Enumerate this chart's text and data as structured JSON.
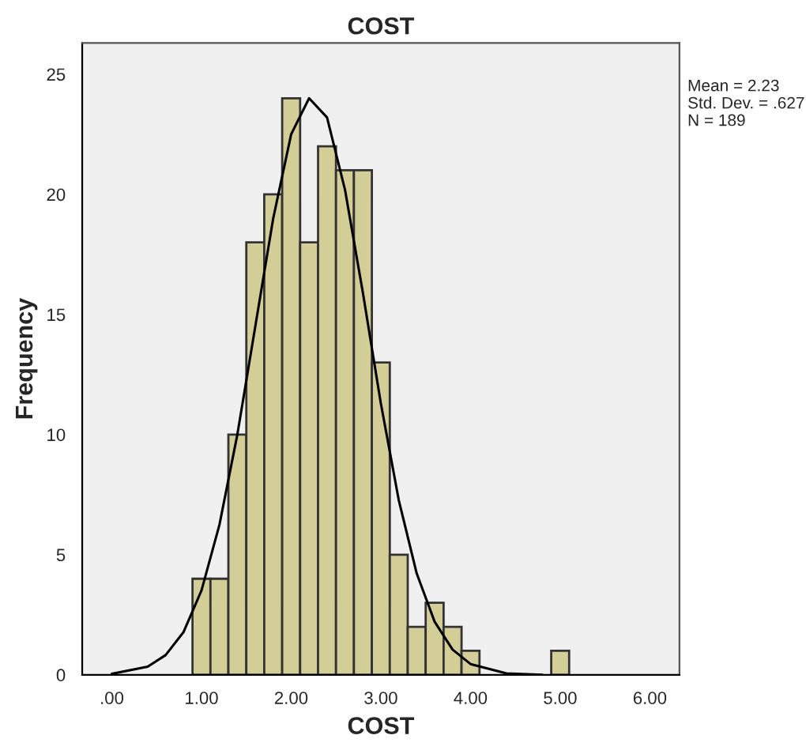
{
  "chart_data": {
    "type": "histogram",
    "title": "COST",
    "xlabel": "COST",
    "ylabel": "Frequency",
    "bins": [
      0.9,
      1.1,
      1.3,
      1.5,
      1.7,
      1.9,
      2.1,
      2.3,
      2.5,
      2.7,
      2.9,
      3.1,
      3.3,
      3.5,
      3.7,
      3.9,
      4.1,
      4.3,
      4.5,
      4.7,
      4.9,
      5.1
    ],
    "values": [
      4,
      4,
      10,
      18,
      20,
      24,
      18,
      22,
      21,
      21,
      13,
      5,
      2,
      3,
      2,
      1,
      0,
      0,
      0,
      0,
      1
    ],
    "color": "#d3ce97",
    "series": [
      {
        "type": "line",
        "color": "#000000",
        "x": [
          0,
          0.4,
          0.6,
          0.8,
          1.0,
          1.2,
          1.4,
          1.6,
          1.8,
          2.0,
          2.2,
          2.4,
          2.6,
          2.8,
          3.0,
          3.2,
          3.4,
          3.6,
          3.8,
          4.0,
          4.4,
          4.8
        ],
        "values": [
          0.04,
          0.34,
          0.82,
          1.78,
          3.51,
          6.24,
          10.0,
          14.5,
          19.0,
          22.5,
          24.0,
          23.2,
          20.2,
          15.9,
          11.3,
          7.27,
          4.22,
          2.21,
          1.05,
          0.45,
          0.06,
          0.0
        ]
      }
    ],
    "annotations": [
      "Mean = 2.23",
      "Std. Dev. = .627",
      "N = 189"
    ],
    "xlim": [
      -0.33,
      6.33
    ],
    "ylim": [
      0,
      26.3
    ],
    "xticks": [
      {
        "value": 0,
        "label": ".00"
      },
      {
        "value": 1,
        "label": "1.00"
      },
      {
        "value": 2,
        "label": "2.00"
      },
      {
        "value": 3,
        "label": "3.00"
      },
      {
        "value": 4,
        "label": "4.00"
      },
      {
        "value": 5,
        "label": "5.00"
      },
      {
        "value": 6,
        "label": "6.00"
      }
    ],
    "yticks": [
      0,
      5,
      10,
      15,
      20,
      25
    ],
    "grid": false
  }
}
